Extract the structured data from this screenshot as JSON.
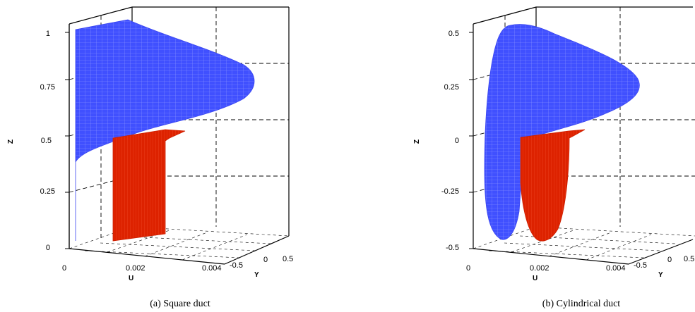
{
  "chart_data": [
    {
      "type": "surface3d",
      "caption": "(a)  Square duct",
      "xlabel": "U",
      "ylabel": "Y",
      "zlabel": "Z",
      "u_ticks": [
        "0",
        "0.002",
        "0.004"
      ],
      "u_range": [
        0,
        0.004
      ],
      "y_ticks": [
        "-0.5",
        "0",
        "0.5"
      ],
      "z_ticks": [
        "0",
        "0.25",
        "0.5",
        "0.75",
        "1"
      ],
      "z_range": [
        0,
        1
      ],
      "series": [
        {
          "color": "#3f4cff",
          "shape": "square-duct velocity profile",
          "z_range": [
            0,
            1
          ],
          "u_max": 0.0045
        },
        {
          "color": "#dd2200",
          "shape": "square-duct velocity profile (section)",
          "z_range": [
            0,
            0.5
          ],
          "u_max": 0.0015
        }
      ]
    },
    {
      "type": "surface3d",
      "caption": "(b)  Cylindrical duct",
      "xlabel": "U",
      "ylabel": "Y",
      "zlabel": "Z",
      "u_ticks": [
        "0",
        "0.002",
        "0.004"
      ],
      "u_range": [
        0,
        0.004
      ],
      "y_ticks": [
        "-0.5",
        "0",
        "0.5"
      ],
      "z_ticks": [
        "-0.5",
        "-0.25",
        "0",
        "0.25",
        "0.5"
      ],
      "z_range": [
        -0.5,
        0.5
      ],
      "series": [
        {
          "color": "#3f4cff",
          "shape": "cylindrical-duct velocity profile",
          "z_range": [
            -0.5,
            0.5
          ],
          "u_max": 0.0045
        },
        {
          "color": "#dd2200",
          "shape": "cylindrical-duct velocity profile (section)",
          "z_range": [
            -0.5,
            0
          ],
          "u_max": 0.0015
        }
      ]
    }
  ]
}
